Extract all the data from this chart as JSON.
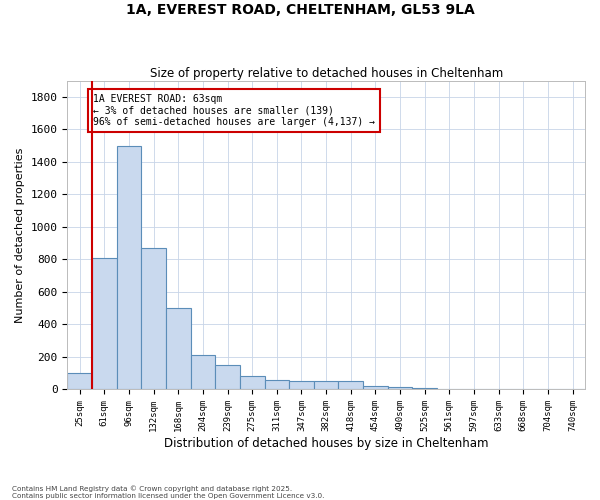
{
  "title_line1": "1A, EVEREST ROAD, CHELTENHAM, GL53 9LA",
  "title_line2": "Size of property relative to detached houses in Cheltenham",
  "xlabel": "Distribution of detached houses by size in Cheltenham",
  "ylabel": "Number of detached properties",
  "footnote": "Contains HM Land Registry data © Crown copyright and database right 2025.\nContains public sector information licensed under the Open Government Licence v3.0.",
  "bar_color": "#c9d9ee",
  "bar_edge_color": "#5b8db8",
  "grid_color": "#c8d4e8",
  "bins": [
    "25sqm",
    "61sqm",
    "96sqm",
    "132sqm",
    "168sqm",
    "204sqm",
    "239sqm",
    "275sqm",
    "311sqm",
    "347sqm",
    "382sqm",
    "418sqm",
    "454sqm",
    "490sqm",
    "525sqm",
    "561sqm",
    "597sqm",
    "633sqm",
    "668sqm",
    "704sqm",
    "740sqm"
  ],
  "values": [
    100,
    810,
    1500,
    870,
    500,
    210,
    150,
    80,
    60,
    50,
    50,
    50,
    20,
    15,
    8,
    5,
    3,
    2,
    1,
    1,
    0
  ],
  "property_line_x": 1.0,
  "annotation_title": "1A EVEREST ROAD: 63sqm",
  "annotation_line1": "← 3% of detached houses are smaller (139)",
  "annotation_line2": "96% of semi-detached houses are larger (4,137) →",
  "annotation_color": "#cc0000",
  "ylim": [
    0,
    1900
  ],
  "yticks": [
    0,
    200,
    400,
    600,
    800,
    1000,
    1200,
    1400,
    1600,
    1800
  ],
  "background_color": "#ffffff"
}
